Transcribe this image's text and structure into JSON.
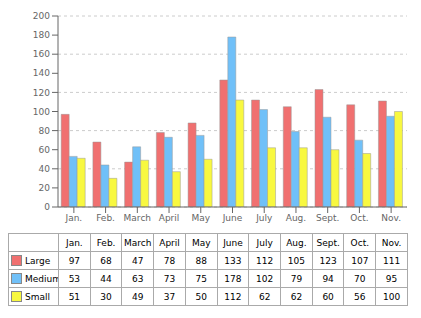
{
  "chart_data": {
    "type": "bar",
    "categories": [
      "Jan.",
      "Feb.",
      "March",
      "April",
      "May",
      "June",
      "July",
      "Aug.",
      "Sept.",
      "Oct.",
      "Nov."
    ],
    "series": [
      {
        "name": "Large",
        "color": "#f07070",
        "values": [
          97,
          68,
          47,
          78,
          88,
          133,
          112,
          105,
          123,
          107,
          111
        ]
      },
      {
        "name": "Medium",
        "color": "#70c0f8",
        "values": [
          53,
          44,
          63,
          73,
          75,
          178,
          102,
          79,
          94,
          70,
          95
        ]
      },
      {
        "name": "Small",
        "color": "#f8f840",
        "values": [
          51,
          30,
          49,
          37,
          50,
          112,
          62,
          62,
          60,
          56,
          100
        ]
      }
    ],
    "ylim": [
      0,
      200
    ],
    "yticks": [
      0,
      20,
      40,
      60,
      80,
      100,
      120,
      140,
      160,
      180,
      200
    ],
    "grid": true,
    "legend": "bottom"
  }
}
